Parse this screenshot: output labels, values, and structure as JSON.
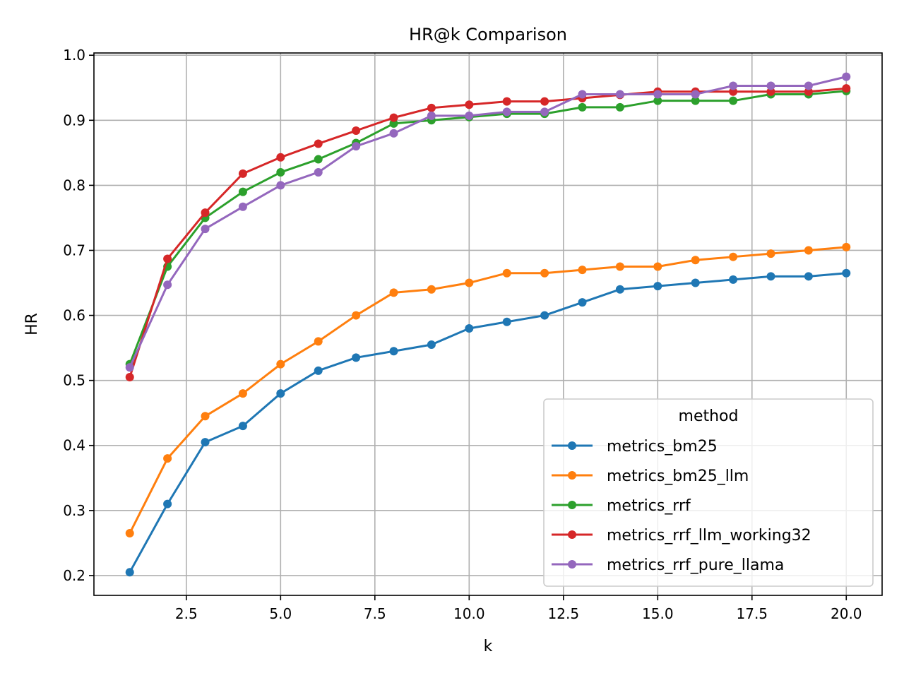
{
  "chart_data": {
    "type": "line",
    "title": "HR@k Comparison",
    "xlabel": "k",
    "ylabel": "HR",
    "xlim": [
      0.05,
      20.95
    ],
    "ylim": [
      0.1695,
      1.0035
    ],
    "xticks": [
      2.5,
      5.0,
      7.5,
      10.0,
      12.5,
      15.0,
      17.5,
      20.0
    ],
    "xtick_labels": [
      "2.5",
      "5.0",
      "7.5",
      "10.0",
      "12.5",
      "15.0",
      "17.5",
      "20.0"
    ],
    "yticks": [
      0.2,
      0.3,
      0.4,
      0.5,
      0.6,
      0.7,
      0.8,
      0.9,
      1.0
    ],
    "ytick_labels": [
      "0.2",
      "0.3",
      "0.4",
      "0.5",
      "0.6",
      "0.7",
      "0.8",
      "0.9",
      "1.0"
    ],
    "grid": true,
    "legend": {
      "title": "method",
      "position": "lower-right"
    },
    "x": [
      1,
      2,
      3,
      4,
      5,
      6,
      7,
      8,
      9,
      10,
      11,
      12,
      13,
      14,
      15,
      16,
      17,
      18,
      19,
      20
    ],
    "series": [
      {
        "name": "metrics_bm25",
        "color": "#1f77b4",
        "values": [
          0.205,
          0.31,
          0.405,
          0.43,
          0.48,
          0.515,
          0.535,
          0.545,
          0.555,
          0.58,
          0.59,
          0.6,
          0.62,
          0.64,
          0.645,
          0.65,
          0.655,
          0.66,
          0.66,
          0.665
        ]
      },
      {
        "name": "metrics_bm25_llm",
        "color": "#ff7f0e",
        "values": [
          0.265,
          0.38,
          0.445,
          0.48,
          0.525,
          0.56,
          0.6,
          0.635,
          0.64,
          0.65,
          0.665,
          0.665,
          0.67,
          0.675,
          0.675,
          0.685,
          0.69,
          0.695,
          0.7,
          0.705
        ]
      },
      {
        "name": "metrics_rrf",
        "color": "#2ca02c",
        "values": [
          0.525,
          0.675,
          0.75,
          0.79,
          0.82,
          0.84,
          0.865,
          0.895,
          0.9,
          0.905,
          0.91,
          0.91,
          0.92,
          0.92,
          0.93,
          0.93,
          0.93,
          0.94,
          0.94,
          0.945
        ]
      },
      {
        "name": "metrics_rrf_llm_working32",
        "color": "#d62728",
        "values": [
          0.505,
          0.687,
          0.758,
          0.818,
          0.843,
          0.864,
          0.884,
          0.904,
          0.919,
          0.924,
          0.929,
          0.929,
          0.934,
          0.939,
          0.944,
          0.944,
          0.944,
          0.944,
          0.944,
          0.949
        ]
      },
      {
        "name": "metrics_rrf_pure_llama",
        "color": "#9467bd",
        "values": [
          0.52,
          0.647,
          0.733,
          0.767,
          0.8,
          0.82,
          0.86,
          0.88,
          0.907,
          0.907,
          0.913,
          0.913,
          0.94,
          0.94,
          0.94,
          0.94,
          0.953,
          0.953,
          0.953,
          0.967
        ]
      }
    ]
  }
}
